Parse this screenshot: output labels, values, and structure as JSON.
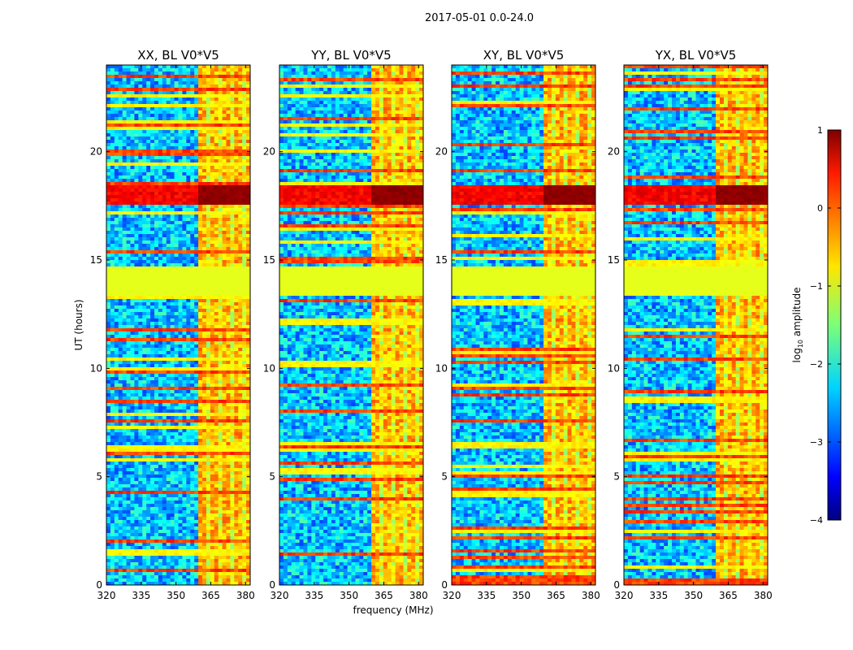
{
  "figure": {
    "suptitle": "2017-05-01 0.0-24.0",
    "xlabel": "frequency (MHz)",
    "ylabel": "UT (hours)"
  },
  "colorbar": {
    "label_prefix": "log",
    "label_sub": "10",
    "label_suffix": " amplitude",
    "ticks": [
      {
        "value": 1,
        "label": "1"
      },
      {
        "value": 0,
        "label": "0"
      },
      {
        "value": -1,
        "label": "−1"
      },
      {
        "value": -2,
        "label": "−2"
      },
      {
        "value": -3,
        "label": "−3"
      },
      {
        "value": -4,
        "label": "−4"
      }
    ],
    "range": [
      -4,
      1
    ],
    "colormap": "jet"
  },
  "chart_data": [
    {
      "type": "heatmap",
      "title": "XX, BL V0*V5",
      "xlabel": "frequency (MHz)",
      "ylabel": "UT (hours)",
      "xlim": [
        320,
        382
      ],
      "ylim": [
        0,
        24
      ],
      "xticks": [
        320,
        335,
        350,
        365,
        380
      ],
      "yticks": [
        0,
        5,
        10,
        15,
        20
      ],
      "value_range": [
        -4,
        1
      ],
      "bright_band_mhz": [
        359,
        382
      ],
      "flagged_utc_hours": [
        13.4,
        14.7
      ],
      "flag_value": -1,
      "strong_event_utc_hours": [
        17.6,
        18.5
      ],
      "strong_event_level": 1
    },
    {
      "type": "heatmap",
      "title": "YY, BL V0*V5",
      "xlabel": "frequency (MHz)",
      "ylabel": "UT (hours)",
      "xlim": [
        320,
        382
      ],
      "ylim": [
        0,
        24
      ],
      "xticks": [
        320,
        335,
        350,
        365,
        380
      ],
      "yticks": [
        0,
        5,
        10,
        15,
        20
      ],
      "value_range": [
        -4,
        1
      ],
      "bright_band_mhz": [
        359,
        382
      ],
      "flagged_utc_hours": [
        13.4,
        14.7
      ],
      "flag_value": -1,
      "strong_event_utc_hours": [
        17.6,
        18.5
      ],
      "strong_event_level": 1
    },
    {
      "type": "heatmap",
      "title": "XY, BL V0*V5",
      "xlabel": "frequency (MHz)",
      "ylabel": "UT (hours)",
      "xlim": [
        320,
        382
      ],
      "ylim": [
        0,
        24
      ],
      "xticks": [
        320,
        335,
        350,
        365,
        380
      ],
      "yticks": [
        0,
        5,
        10,
        15,
        20
      ],
      "value_range": [
        -4,
        1
      ],
      "bright_band_mhz": [
        359,
        382
      ],
      "flagged_utc_hours": [
        13.4,
        14.7
      ],
      "flag_value": -1,
      "strong_event_utc_hours": [
        17.6,
        18.5
      ],
      "strong_event_level": 1
    },
    {
      "type": "heatmap",
      "title": "YX, BL V0*V5",
      "xlabel": "frequency (MHz)",
      "ylabel": "UT (hours)",
      "xlim": [
        320,
        382
      ],
      "ylim": [
        0,
        24
      ],
      "xticks": [
        320,
        335,
        350,
        365,
        380
      ],
      "yticks": [
        0,
        5,
        10,
        15,
        20
      ],
      "value_range": [
        -4,
        1
      ],
      "bright_band_mhz": [
        359,
        382
      ],
      "flagged_utc_hours": [
        13.4,
        14.7
      ],
      "flag_value": -1,
      "strong_event_utc_hours": [
        17.6,
        18.5
      ],
      "strong_event_level": 1
    }
  ]
}
